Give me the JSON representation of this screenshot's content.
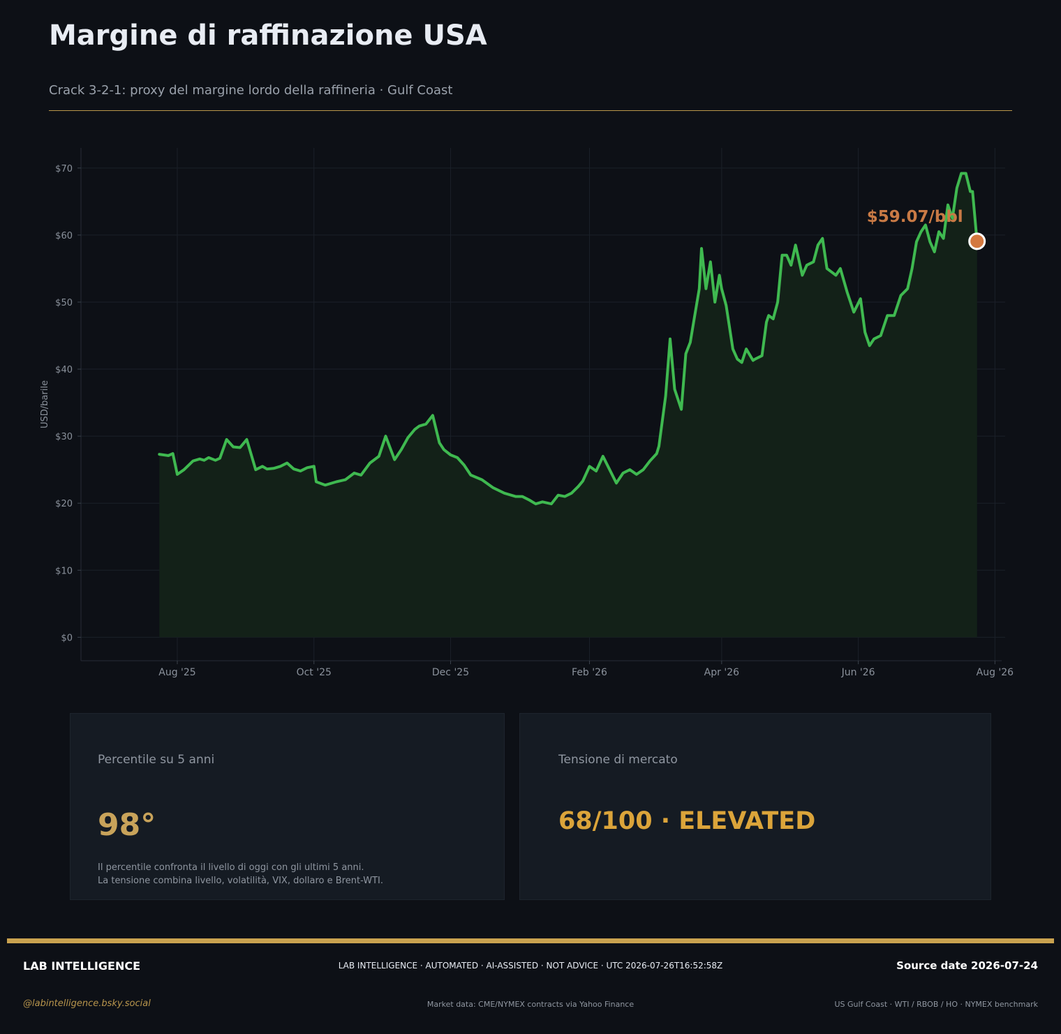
{
  "header": {
    "title": "Margine di raffinazione USA",
    "subtitle": "Crack 3-2-1: proxy del margine lordo della raffineria · Gulf Coast"
  },
  "colors": {
    "line": "#3fb950",
    "area": "#132118",
    "marker": "#d3783f",
    "accent_gold": "#c9a24f",
    "background": "#0d1016"
  },
  "chart_data": {
    "type": "area",
    "ylabel": "USD/barile",
    "ylim": [
      -3.5,
      73
    ],
    "yticks": [
      0,
      10,
      20,
      30,
      40,
      50,
      60,
      70
    ],
    "ytick_labels": [
      "$0",
      "$10",
      "$20",
      "$30",
      "$40",
      "$50",
      "$60",
      "$70"
    ],
    "xlim": [
      "2025-06-19",
      "2026-08-04"
    ],
    "xticks": [
      "2025-08-01",
      "2025-10-01",
      "2025-12-01",
      "2026-02-01",
      "2026-04-01",
      "2026-06-01",
      "2026-08-01"
    ],
    "xtick_labels": [
      "Aug '25",
      "Oct '25",
      "Dec '25",
      "Feb '26",
      "Apr '26",
      "Jun '26",
      "Aug '26"
    ],
    "grid": true,
    "last_value_label": "$59.07/bbl",
    "series": [
      {
        "x": [
          "2025-07-24",
          "2025-07-28",
          "2025-07-30",
          "2025-08-01",
          "2025-08-04",
          "2025-08-08",
          "2025-08-11",
          "2025-08-13",
          "2025-08-15",
          "2025-08-18",
          "2025-08-20",
          "2025-08-23",
          "2025-08-26",
          "2025-08-29",
          "2025-09-01",
          "2025-09-05",
          "2025-09-08",
          "2025-09-10",
          "2025-09-13",
          "2025-09-16",
          "2025-09-19",
          "2025-09-22",
          "2025-09-25",
          "2025-09-28",
          "2025-10-01",
          "2025-10-02",
          "2025-10-06",
          "2025-10-11",
          "2025-10-15",
          "2025-10-19",
          "2025-10-22",
          "2025-10-26",
          "2025-10-30",
          "2025-11-02",
          "2025-11-06",
          "2025-11-09",
          "2025-11-12",
          "2025-11-15",
          "2025-11-17",
          "2025-11-20",
          "2025-11-23",
          "2025-11-26",
          "2025-11-28",
          "2025-12-01",
          "2025-12-04",
          "2025-12-07",
          "2025-12-10",
          "2025-12-15",
          "2025-12-20",
          "2025-12-25",
          "2025-12-30",
          "2026-01-02",
          "2026-01-05",
          "2026-01-08",
          "2026-01-11",
          "2026-01-15",
          "2026-01-18",
          "2026-01-21",
          "2026-01-24",
          "2026-01-27",
          "2026-01-29",
          "2026-02-01",
          "2026-02-04",
          "2026-02-07",
          "2026-02-10",
          "2026-02-13",
          "2026-02-16",
          "2026-02-19",
          "2026-02-22",
          "2026-02-25",
          "2026-02-28",
          "2026-03-03",
          "2026-03-04",
          "2026-03-07",
          "2026-03-09",
          "2026-03-11",
          "2026-03-14",
          "2026-03-16",
          "2026-03-18",
          "2026-03-20",
          "2026-03-22",
          "2026-03-23",
          "2026-03-25",
          "2026-03-27",
          "2026-03-29",
          "2026-03-31",
          "2026-04-01",
          "2026-04-03",
          "2026-04-06",
          "2026-04-08",
          "2026-04-10",
          "2026-04-12",
          "2026-04-15",
          "2026-04-16",
          "2026-04-19",
          "2026-04-21",
          "2026-04-22",
          "2026-04-24",
          "2026-04-26",
          "2026-04-28",
          "2026-04-30",
          "2026-05-02",
          "2026-05-04",
          "2026-05-07",
          "2026-05-09",
          "2026-05-12",
          "2026-05-14",
          "2026-05-16",
          "2026-05-18",
          "2026-05-20",
          "2026-05-22",
          "2026-05-24",
          "2026-05-27",
          "2026-05-30",
          "2026-06-02",
          "2026-06-04",
          "2026-06-06",
          "2026-06-08",
          "2026-06-11",
          "2026-06-14",
          "2026-06-17",
          "2026-06-20",
          "2026-06-23",
          "2026-06-25",
          "2026-06-27",
          "2026-06-29",
          "2026-07-01",
          "2026-07-03",
          "2026-07-05",
          "2026-07-07",
          "2026-07-09",
          "2026-07-11",
          "2026-07-13",
          "2026-07-15",
          "2026-07-17",
          "2026-07-19",
          "2026-07-21",
          "2026-07-22",
          "2026-07-24"
        ],
        "y": [
          27.3,
          27.1,
          27.4,
          24.3,
          25.0,
          26.3,
          26.6,
          26.4,
          26.8,
          26.4,
          26.7,
          29.5,
          28.4,
          28.3,
          29.5,
          25.0,
          25.5,
          25.1,
          25.2,
          25.5,
          26.0,
          25.1,
          24.8,
          25.3,
          25.5,
          23.2,
          22.7,
          23.2,
          23.5,
          24.5,
          24.2,
          26.0,
          27.0,
          30.0,
          26.5,
          28.0,
          29.8,
          31.0,
          31.5,
          31.8,
          33.1,
          29.0,
          28.0,
          27.2,
          26.8,
          25.7,
          24.2,
          23.5,
          22.3,
          21.5,
          21.0,
          21.0,
          20.5,
          19.9,
          20.2,
          19.9,
          21.2,
          21.0,
          21.5,
          22.5,
          23.3,
          25.5,
          24.8,
          27.0,
          25.0,
          23.0,
          24.5,
          25.0,
          24.3,
          25.0,
          26.3,
          27.4,
          28.5,
          36.0,
          44.5,
          37.0,
          34.0,
          42.3,
          44.0,
          48.0,
          52.0,
          58.0,
          52.0,
          56.0,
          50.0,
          54.0,
          52.0,
          49.5,
          43.0,
          41.5,
          41.0,
          43.0,
          41.3,
          41.5,
          42.0,
          47.0,
          48.0,
          47.5,
          50.0,
          57.0,
          57.0,
          55.5,
          58.5,
          54.0,
          55.5,
          56.0,
          58.5,
          59.5,
          55.0,
          54.5,
          54.0,
          55.0,
          51.5,
          48.5,
          50.5,
          45.5,
          43.5,
          44.5,
          45.0,
          48.0,
          48.0,
          51.0,
          52.0,
          55.0,
          59.0,
          60.5,
          61.5,
          59.0,
          57.5,
          60.5,
          59.5,
          64.5,
          62.5,
          67.0,
          69.2,
          69.2,
          66.5,
          66.5,
          59.07
        ]
      }
    ]
  },
  "cards": [
    {
      "label": "Percentile su 5 anni",
      "value": "98°",
      "notes": [
        "Il percentile confronta il livello di oggi con gli ultimi 5 anni.",
        "La tensione combina livello, volatilità, VIX, dollaro e Brent-WTI."
      ]
    },
    {
      "label": "Tensione di mercato",
      "value": "68/100 · ELEVATED"
    }
  ],
  "footer": {
    "brand": "LAB INTELLIGENCE",
    "center": "LAB INTELLIGENCE · AUTOMATED · AI-ASSISTED · NOT ADVICE · UTC 2026-07-26T16:52:58Z",
    "source_date": "Source date 2026-07-24",
    "handle": "@labintelligence.bsky.social",
    "market": "Market data: CME/NYMEX contracts via Yahoo Finance",
    "benchmark": "US Gulf Coast · WTI / RBOB / HO · NYMEX benchmark"
  }
}
